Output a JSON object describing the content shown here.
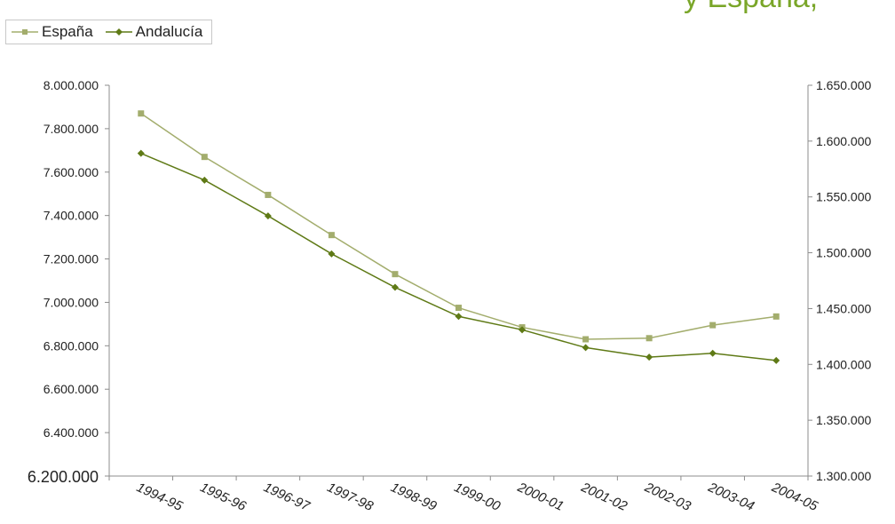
{
  "chart_data": {
    "type": "line",
    "title": "y España,",
    "categories": [
      "1994-95",
      "1995-96",
      "1996-97",
      "1997-98",
      "1998-99",
      "1999-00",
      "2000-01",
      "2001-02",
      "2002-03",
      "2003-04",
      "2004-05"
    ],
    "series": [
      {
        "name": "España",
        "axis": "left",
        "color": "#a3ad6d",
        "marker": "square",
        "values": [
          7870000,
          7670000,
          7495000,
          7310000,
          7130000,
          6975000,
          6885000,
          6830000,
          6835000,
          6895000,
          6935000
        ]
      },
      {
        "name": "Andalucía",
        "axis": "right",
        "color": "#5f7a16",
        "marker": "diamond",
        "values": [
          1589000,
          1565000,
          1533000,
          1499000,
          1469000,
          1443000,
          1431000,
          1415000,
          1406500,
          1410000,
          1403500
        ]
      }
    ],
    "yleft": {
      "ylim": [
        6200000,
        8000000
      ],
      "ticks": [
        "8.000.000",
        "7.800.000",
        "7.600.000",
        "7.400.000",
        "7.200.000",
        "7.000.000",
        "6.800.000",
        "6.600.000",
        "6.400.000",
        "6.200.000"
      ]
    },
    "yright": {
      "ylim": [
        1300000,
        1650000
      ],
      "ticks": [
        "1.650.000",
        "1.600.000",
        "1.550.000",
        "1.500.000",
        "1.450.000",
        "1.400.000",
        "1.350.000",
        "1.300.000"
      ]
    },
    "grid": false,
    "legend": "top-left"
  }
}
